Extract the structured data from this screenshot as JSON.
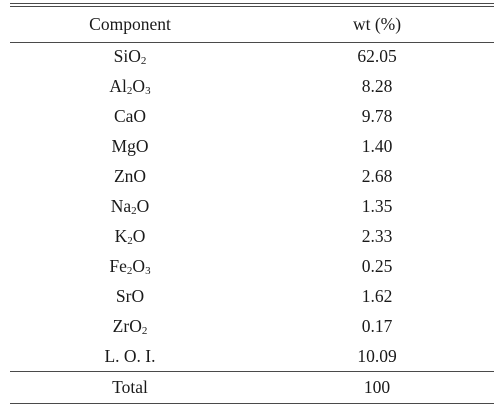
{
  "table": {
    "headers": {
      "component": "Component",
      "wt": "wt (%)"
    },
    "rows": [
      {
        "component": "SiO",
        "sub": "2",
        "after": "",
        "wt": "62.05"
      },
      {
        "component": "Al",
        "sub": "2",
        "after": "O",
        "sub2": "3",
        "wt": "8.28"
      },
      {
        "component": "CaO",
        "sub": "",
        "after": "",
        "wt": "9.78"
      },
      {
        "component": "MgO",
        "sub": "",
        "after": "",
        "wt": "1.40"
      },
      {
        "component": "ZnO",
        "sub": "",
        "after": "",
        "wt": "2.68"
      },
      {
        "component": "Na",
        "sub": "2",
        "after": "O",
        "wt": "1.35"
      },
      {
        "component": "K",
        "sub": "2",
        "after": "O",
        "wt": "2.33"
      },
      {
        "component": "Fe",
        "sub": "2",
        "after": "O",
        "sub2": "3",
        "wt": "0.25"
      },
      {
        "component": "SrO",
        "sub": "",
        "after": "",
        "wt": "1.62"
      },
      {
        "component": "ZrO",
        "sub": "2",
        "after": "",
        "wt": "0.17"
      },
      {
        "component": "L. O. I.",
        "sub": "",
        "after": "",
        "wt": "10.09"
      }
    ],
    "total": {
      "label": "Total",
      "wt": "100"
    }
  }
}
